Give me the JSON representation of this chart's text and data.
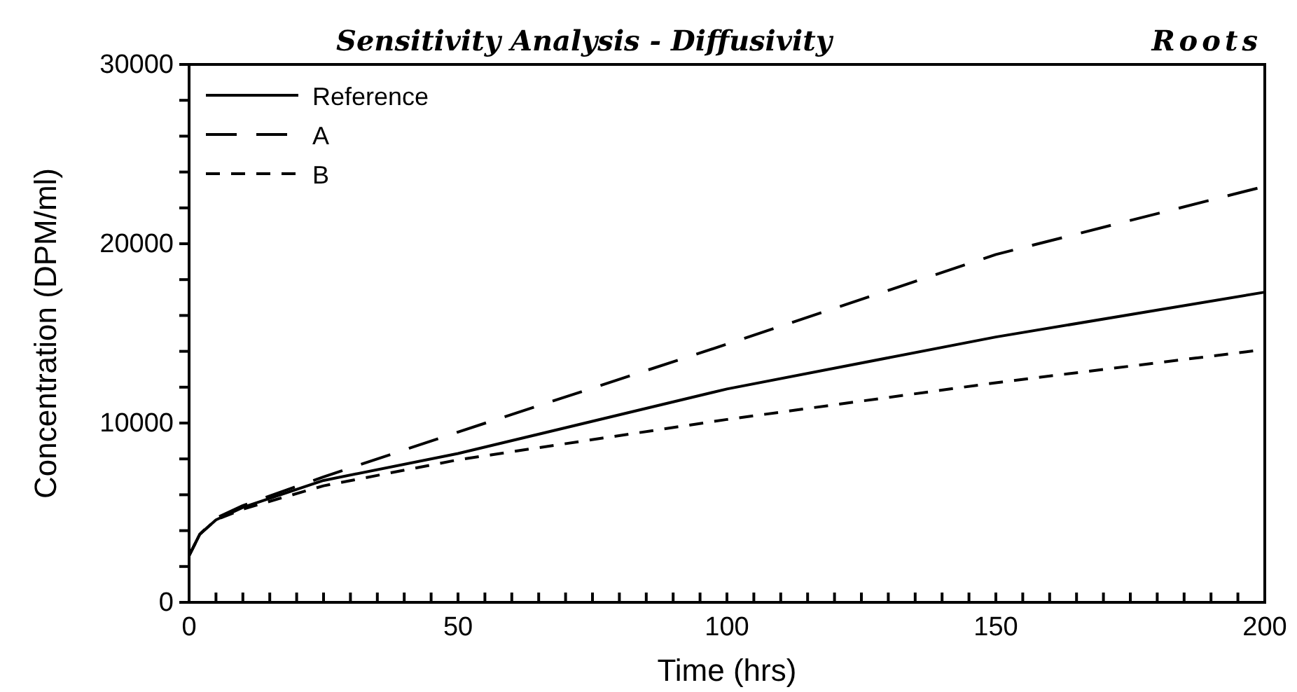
{
  "chart_data": {
    "type": "line",
    "title": "Sensitivity Analysis - Diffusivity",
    "subtitle": "Roots",
    "xlabel": "Time  (hrs)",
    "ylabel": "Concentration  (DPM/ml)",
    "x": [
      0,
      2,
      5,
      10,
      25,
      50,
      100,
      150,
      200
    ],
    "series": [
      {
        "name": "Reference",
        "color": "#000000",
        "line_style": "solid",
        "values": [
          2600,
          3800,
          4600,
          5300,
          6800,
          8300,
          11900,
          14800,
          17300
        ]
      },
      {
        "name": "A",
        "color": "#000000",
        "line_style": "dashed",
        "values": [
          2600,
          3800,
          4700,
          5400,
          7000,
          9500,
          14400,
          19400,
          23200
        ]
      },
      {
        "name": "B",
        "color": "#000000",
        "line_style": "dotted",
        "values": [
          2600,
          3800,
          4600,
          5200,
          6500,
          7950,
          10200,
          12250,
          14100
        ]
      }
    ],
    "xlim": [
      0,
      200
    ],
    "ylim": [
      0,
      30000
    ],
    "xticks": [
      0,
      {
        "value": 5,
        "label": null
      },
      {
        "value": 10,
        "label": null
      },
      {
        "value": 15,
        "label": null
      },
      {
        "value": 20,
        "label": null
      },
      {
        "value": 25,
        "label": null
      },
      {
        "value": 30,
        "label": null
      },
      {
        "value": 35,
        "label": null
      },
      {
        "value": 40,
        "label": null
      },
      {
        "value": 45,
        "label": null
      },
      50,
      {
        "value": 55,
        "label": null
      },
      {
        "value": 60,
        "label": null
      },
      {
        "value": 65,
        "label": null
      },
      {
        "value": 70,
        "label": null
      },
      {
        "value": 75,
        "label": null
      },
      {
        "value": 80,
        "label": null
      },
      {
        "value": 85,
        "label": null
      },
      {
        "value": 90,
        "label": null
      },
      {
        "value": 95,
        "label": null
      },
      100,
      {
        "value": 105,
        "label": null
      },
      {
        "value": 110,
        "label": null
      },
      {
        "value": 115,
        "label": null
      },
      {
        "value": 120,
        "label": null
      },
      {
        "value": 125,
        "label": null
      },
      {
        "value": 130,
        "label": null
      },
      {
        "value": 135,
        "label": null
      },
      {
        "value": 140,
        "label": null
      },
      {
        "value": 145,
        "label": null
      },
      150,
      {
        "value": 155,
        "label": null
      },
      {
        "value": 160,
        "label": null
      },
      {
        "value": 165,
        "label": null
      },
      {
        "value": 170,
        "label": null
      },
      {
        "value": 175,
        "label": null
      },
      {
        "value": 180,
        "label": null
      },
      {
        "value": 185,
        "label": null
      },
      {
        "value": 190,
        "label": null
      },
      {
        "value": 195,
        "label": null
      },
      200
    ],
    "yticks": [
      0,
      {
        "value": 2000,
        "label": null
      },
      {
        "value": 4000,
        "label": null
      },
      {
        "value": 6000,
        "label": null
      },
      {
        "value": 8000,
        "label": null
      },
      10000,
      {
        "value": 12000,
        "label": null
      },
      {
        "value": 14000,
        "label": null
      },
      {
        "value": 16000,
        "label": null
      },
      {
        "value": 18000,
        "label": null
      },
      20000,
      {
        "value": 22000,
        "label": null
      },
      {
        "value": 24000,
        "label": null
      },
      {
        "value": 26000,
        "label": null
      },
      {
        "value": 28000,
        "label": null
      },
      30000
    ],
    "grid": false,
    "legend": "top left",
    "marker": "none"
  }
}
